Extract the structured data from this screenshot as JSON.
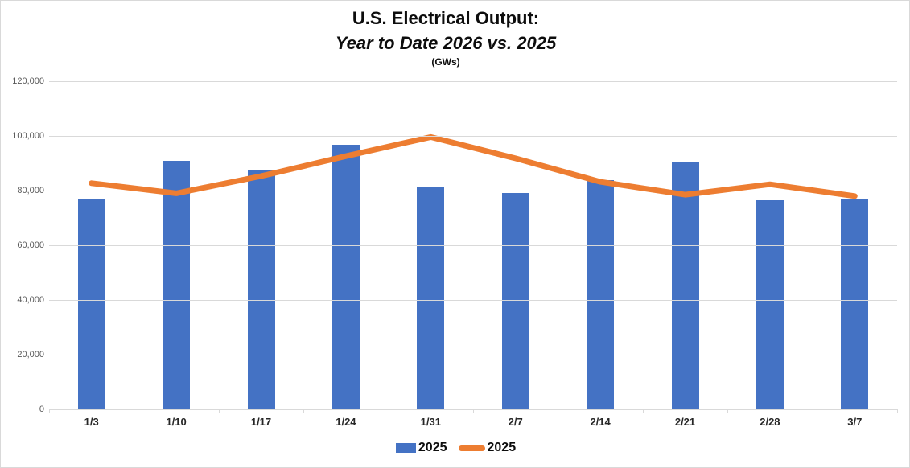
{
  "title": {
    "line1": "U.S. Electrical Output:",
    "line2": "Year to Date 2026 vs. 2025",
    "line3": "(GWs)"
  },
  "legend": {
    "items": [
      {
        "label": "2025",
        "swatch": "bar-swatch",
        "color": "#4472C4"
      },
      {
        "label": "2025",
        "swatch": "line-swatch",
        "color": "#ED7D31"
      }
    ]
  },
  "colors": {
    "bar": "#4472C4",
    "line": "#ED7D31",
    "gridline": "#D9D9D9",
    "axis_labels": "#595959",
    "category_labels": "#262626"
  },
  "chart_data": {
    "type": "bar",
    "subtype": "combo-bar-line",
    "title": "U.S. Electrical Output: Year to Date 2026 vs. 2025 (GWs)",
    "xlabel": "",
    "ylabel": "",
    "categories": [
      "1/3",
      "1/10",
      "1/17",
      "1/24",
      "1/31",
      "2/7",
      "2/14",
      "2/21",
      "2/28",
      "3/7"
    ],
    "series": [
      {
        "name": "2025",
        "render": "bar",
        "color": "#4472C4",
        "values": [
          77200,
          90800,
          87300,
          96800,
          81500,
          79000,
          83800,
          90300,
          76600,
          77200
        ]
      },
      {
        "name": "2025",
        "render": "line",
        "color": "#ED7D31",
        "values": [
          82700,
          79000,
          85300,
          92600,
          99600,
          91800,
          83200,
          78500,
          82300,
          78000
        ]
      }
    ],
    "ylim": [
      0,
      120000
    ],
    "yticks": [
      {
        "value": 0,
        "label": "0"
      },
      {
        "value": 20000,
        "label": "20,000"
      },
      {
        "value": 40000,
        "label": "40,000"
      },
      {
        "value": 60000,
        "label": "60,000"
      },
      {
        "value": 80000,
        "label": "80,000"
      },
      {
        "value": 100000,
        "label": "100,000"
      },
      {
        "value": 120000,
        "label": "120,000"
      }
    ],
    "grid": "horizontal",
    "legend_position": "bottom"
  }
}
